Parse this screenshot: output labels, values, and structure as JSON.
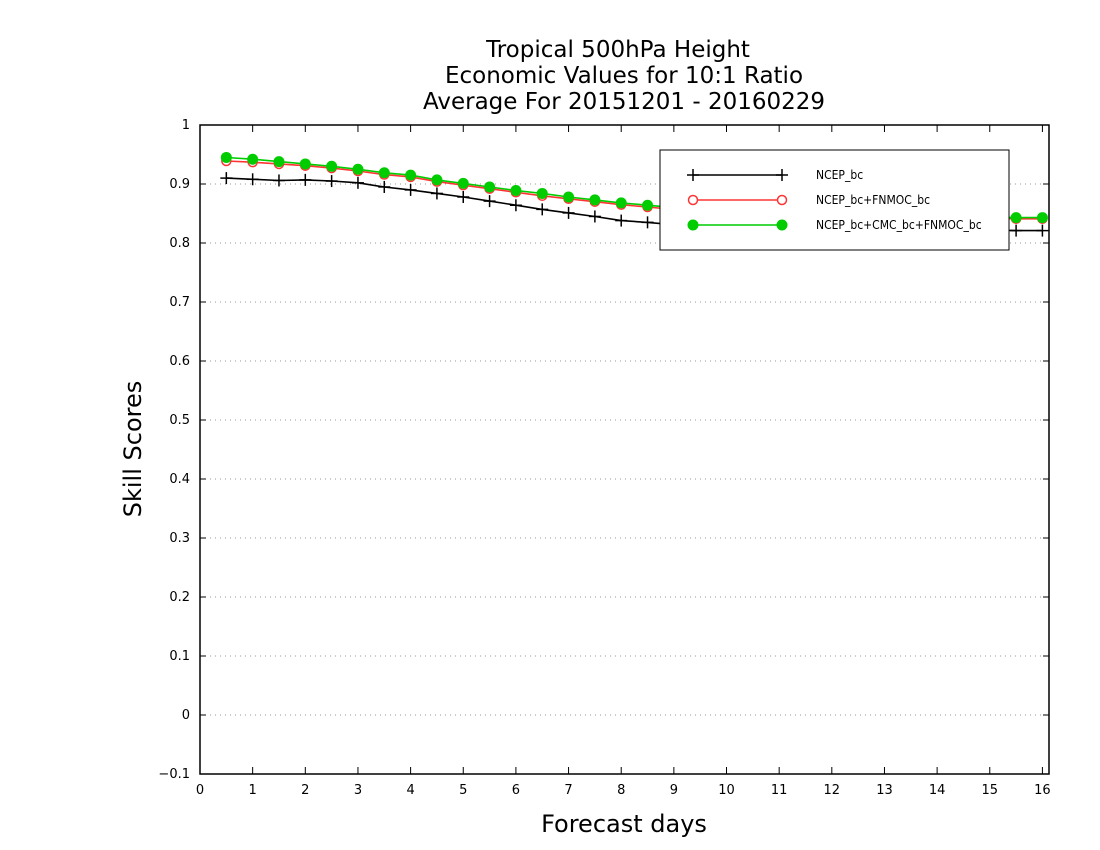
{
  "chart_data": {
    "type": "line",
    "title": [
      "Tropical 500hPa Height",
      "Economic Values for 10:1 Ratio",
      "Average For 20151201 - 20160229"
    ],
    "xlabel": "Forecast days",
    "ylabel": "Skill Scores",
    "xlim": [
      0,
      16.125
    ],
    "ylim": [
      -0.1,
      1
    ],
    "xticks": [
      "0",
      "1",
      "2",
      "3",
      "4",
      "5",
      "6",
      "7",
      "8",
      "9",
      "10",
      "11",
      "12",
      "13",
      "14",
      "15",
      "16"
    ],
    "yticks": [
      "−0.1",
      "0",
      "0.1",
      "0.2",
      "0.3",
      "0.4",
      "0.5",
      "0.6",
      "0.7",
      "0.8",
      "0.9",
      "1"
    ],
    "grid": "horizontal dotted",
    "legend_position": "top-right",
    "x": [
      0.5,
      1,
      1.5,
      2,
      2.5,
      3,
      3.5,
      4,
      4.5,
      5,
      5.5,
      6,
      6.5,
      7,
      7.5,
      8,
      8.5,
      9,
      9.5,
      10,
      10.5,
      11,
      11.5,
      12,
      12.5,
      13,
      13.5,
      14,
      14.5,
      15,
      15.5,
      16
    ],
    "series": [
      {
        "name": "NCEP_bc",
        "color": "#000000",
        "marker": "plus",
        "values": [
          0.91,
          0.908,
          0.906,
          0.907,
          0.905,
          0.902,
          0.895,
          0.89,
          0.884,
          0.878,
          0.871,
          0.864,
          0.857,
          0.851,
          0.845,
          0.838,
          0.835,
          0.831,
          0.829,
          0.828,
          0.827,
          0.826,
          0.825,
          0.825,
          0.824,
          0.824,
          0.823,
          0.823,
          0.822,
          0.822,
          0.821,
          0.821
        ]
      },
      {
        "name": "NCEP_bc+FNMOC_bc",
        "color": "#ff3333",
        "marker": "open-circle",
        "values": [
          0.939,
          0.937,
          0.934,
          0.931,
          0.927,
          0.922,
          0.916,
          0.912,
          0.904,
          0.898,
          0.892,
          0.886,
          0.88,
          0.875,
          0.87,
          0.865,
          0.861,
          0.857,
          0.854,
          0.852,
          0.85,
          0.849,
          0.848,
          0.847,
          0.846,
          0.845,
          0.844,
          0.843,
          0.842,
          0.842,
          0.841,
          0.841
        ]
      },
      {
        "name": "NCEP_bc+CMC_bc+FNMOC_bc",
        "color": "#00cc00",
        "marker": "filled-circle",
        "values": [
          0.945,
          0.942,
          0.938,
          0.934,
          0.93,
          0.925,
          0.919,
          0.915,
          0.907,
          0.901,
          0.895,
          0.889,
          0.884,
          0.878,
          0.873,
          0.868,
          0.864,
          0.86,
          0.857,
          0.855,
          0.853,
          0.852,
          0.851,
          0.85,
          0.849,
          0.848,
          0.847,
          0.846,
          0.845,
          0.844,
          0.843,
          0.843
        ]
      }
    ]
  }
}
